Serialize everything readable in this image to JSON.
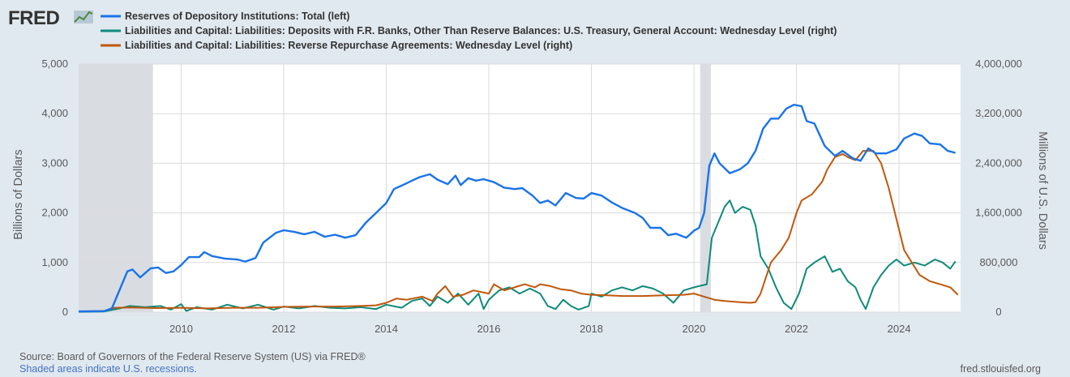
{
  "logo": {
    "text": "FRED"
  },
  "footer": {
    "source": "Source: Board of Governors of the Federal Reserve System (US) via FRED®",
    "recession_note": "Shaded areas indicate U.S. recessions.",
    "site": "fred.stlouisfed.org"
  },
  "colors": {
    "reserves": "#1a73e8",
    "tga": "#0e8a7a",
    "rrp": "#c0570c",
    "recession": "#d9dde2",
    "background": "#e1e9f0",
    "plot": "#ffffff",
    "grid": "#dadada"
  },
  "chart_data": {
    "type": "line",
    "xlabel": "",
    "ylabel_left": "Billions of Dollars",
    "ylabel_right": "Millions of U.S. Dollars",
    "x_ticks": [
      "2010",
      "2012",
      "2014",
      "2016",
      "2018",
      "2020",
      "2022",
      "2024"
    ],
    "xlim": [
      2008.0,
      2025.2
    ],
    "ylim_left": [
      0,
      5000
    ],
    "ylim_right": [
      0,
      4000000
    ],
    "y_ticks_left": [
      "0",
      "1,000",
      "2,000",
      "3,000",
      "4,000",
      "5,000"
    ],
    "y_ticks_right": [
      "0",
      "800,000",
      "1,600,000",
      "2,400,000",
      "3,200,000",
      "4,000,000"
    ],
    "grid": true,
    "legend_position": "top",
    "recessions": [
      [
        2008.0,
        2009.45
      ],
      [
        2020.12,
        2020.33
      ]
    ],
    "series": [
      {
        "name": "Reserves of Depository Institutions: Total (left)",
        "axis": "left",
        "points": [
          [
            2008.0,
            15
          ],
          [
            2008.5,
            20
          ],
          [
            2008.65,
            80
          ],
          [
            2008.8,
            450
          ],
          [
            2008.95,
            820
          ],
          [
            2009.05,
            860
          ],
          [
            2009.2,
            700
          ],
          [
            2009.4,
            880
          ],
          [
            2009.55,
            900
          ],
          [
            2009.7,
            790
          ],
          [
            2009.85,
            820
          ],
          [
            2010.0,
            950
          ],
          [
            2010.15,
            1110
          ],
          [
            2010.35,
            1110
          ],
          [
            2010.45,
            1210
          ],
          [
            2010.6,
            1130
          ],
          [
            2010.85,
            1080
          ],
          [
            2011.1,
            1060
          ],
          [
            2011.25,
            1020
          ],
          [
            2011.45,
            1090
          ],
          [
            2011.6,
            1400
          ],
          [
            2011.85,
            1600
          ],
          [
            2012.0,
            1650
          ],
          [
            2012.2,
            1620
          ],
          [
            2012.4,
            1570
          ],
          [
            2012.6,
            1620
          ],
          [
            2012.8,
            1520
          ],
          [
            2013.0,
            1560
          ],
          [
            2013.2,
            1500
          ],
          [
            2013.4,
            1550
          ],
          [
            2013.6,
            1800
          ],
          [
            2013.8,
            2000
          ],
          [
            2014.0,
            2200
          ],
          [
            2014.15,
            2480
          ],
          [
            2014.3,
            2550
          ],
          [
            2014.5,
            2650
          ],
          [
            2014.65,
            2720
          ],
          [
            2014.85,
            2780
          ],
          [
            2015.0,
            2670
          ],
          [
            2015.2,
            2580
          ],
          [
            2015.35,
            2750
          ],
          [
            2015.45,
            2560
          ],
          [
            2015.6,
            2700
          ],
          [
            2015.75,
            2650
          ],
          [
            2015.9,
            2680
          ],
          [
            2016.1,
            2620
          ],
          [
            2016.3,
            2510
          ],
          [
            2016.5,
            2480
          ],
          [
            2016.65,
            2500
          ],
          [
            2016.85,
            2350
          ],
          [
            2017.0,
            2200
          ],
          [
            2017.15,
            2250
          ],
          [
            2017.3,
            2150
          ],
          [
            2017.5,
            2400
          ],
          [
            2017.7,
            2300
          ],
          [
            2017.85,
            2290
          ],
          [
            2018.0,
            2400
          ],
          [
            2018.2,
            2350
          ],
          [
            2018.4,
            2210
          ],
          [
            2018.6,
            2100
          ],
          [
            2018.85,
            2000
          ],
          [
            2019.0,
            1900
          ],
          [
            2019.15,
            1700
          ],
          [
            2019.35,
            1700
          ],
          [
            2019.5,
            1550
          ],
          [
            2019.65,
            1580
          ],
          [
            2019.85,
            1500
          ],
          [
            2020.0,
            1640
          ],
          [
            2020.1,
            1700
          ],
          [
            2020.2,
            2000
          ],
          [
            2020.3,
            2950
          ],
          [
            2020.4,
            3200
          ],
          [
            2020.5,
            3000
          ],
          [
            2020.7,
            2800
          ],
          [
            2020.9,
            2880
          ],
          [
            2021.05,
            3000
          ],
          [
            2021.2,
            3250
          ],
          [
            2021.35,
            3700
          ],
          [
            2021.5,
            3900
          ],
          [
            2021.65,
            3900
          ],
          [
            2021.8,
            4100
          ],
          [
            2021.95,
            4180
          ],
          [
            2022.1,
            4150
          ],
          [
            2022.2,
            3850
          ],
          [
            2022.35,
            3800
          ],
          [
            2022.55,
            3350
          ],
          [
            2022.75,
            3150
          ],
          [
            2022.9,
            3250
          ],
          [
            2023.1,
            3100
          ],
          [
            2023.25,
            3050
          ],
          [
            2023.4,
            3300
          ],
          [
            2023.55,
            3200
          ],
          [
            2023.75,
            3200
          ],
          [
            2023.95,
            3280
          ],
          [
            2024.1,
            3500
          ],
          [
            2024.3,
            3600
          ],
          [
            2024.45,
            3550
          ],
          [
            2024.6,
            3400
          ],
          [
            2024.8,
            3380
          ],
          [
            2024.95,
            3250
          ],
          [
            2025.1,
            3210
          ]
        ]
      },
      {
        "name": "Liabilities and Capital: Liabilities: Deposits with F.R. Banks, Other Than Reserve Balances: U.S. Treasury, General Account: Wednesday Level (right)",
        "axis": "right",
        "points": [
          [
            2008.0,
            5000
          ],
          [
            2008.5,
            10000
          ],
          [
            2008.8,
            60000
          ],
          [
            2009.0,
            100000
          ],
          [
            2009.3,
            80000
          ],
          [
            2009.6,
            100000
          ],
          [
            2009.8,
            40000
          ],
          [
            2010.0,
            130000
          ],
          [
            2010.1,
            20000
          ],
          [
            2010.3,
            80000
          ],
          [
            2010.6,
            40000
          ],
          [
            2010.9,
            120000
          ],
          [
            2011.2,
            60000
          ],
          [
            2011.5,
            120000
          ],
          [
            2011.8,
            40000
          ],
          [
            2012.0,
            90000
          ],
          [
            2012.3,
            60000
          ],
          [
            2012.6,
            100000
          ],
          [
            2012.9,
            70000
          ],
          [
            2013.2,
            60000
          ],
          [
            2013.5,
            80000
          ],
          [
            2013.8,
            50000
          ],
          [
            2014.0,
            120000
          ],
          [
            2014.3,
            70000
          ],
          [
            2014.5,
            180000
          ],
          [
            2014.7,
            220000
          ],
          [
            2014.85,
            100000
          ],
          [
            2015.0,
            250000
          ],
          [
            2015.2,
            150000
          ],
          [
            2015.4,
            300000
          ],
          [
            2015.6,
            120000
          ],
          [
            2015.8,
            300000
          ],
          [
            2015.9,
            50000
          ],
          [
            2016.0,
            200000
          ],
          [
            2016.2,
            350000
          ],
          [
            2016.4,
            400000
          ],
          [
            2016.6,
            300000
          ],
          [
            2016.8,
            380000
          ],
          [
            2017.0,
            300000
          ],
          [
            2017.15,
            100000
          ],
          [
            2017.3,
            50000
          ],
          [
            2017.45,
            200000
          ],
          [
            2017.6,
            100000
          ],
          [
            2017.75,
            40000
          ],
          [
            2017.95,
            100000
          ],
          [
            2018.0,
            300000
          ],
          [
            2018.2,
            250000
          ],
          [
            2018.4,
            350000
          ],
          [
            2018.6,
            400000
          ],
          [
            2018.8,
            350000
          ],
          [
            2019.0,
            420000
          ],
          [
            2019.2,
            380000
          ],
          [
            2019.4,
            300000
          ],
          [
            2019.6,
            150000
          ],
          [
            2019.8,
            350000
          ],
          [
            2020.0,
            400000
          ],
          [
            2020.15,
            430000
          ],
          [
            2020.25,
            450000
          ],
          [
            2020.35,
            1200000
          ],
          [
            2020.5,
            1500000
          ],
          [
            2020.6,
            1700000
          ],
          [
            2020.7,
            1800000
          ],
          [
            2020.8,
            1600000
          ],
          [
            2020.95,
            1700000
          ],
          [
            2021.1,
            1650000
          ],
          [
            2021.2,
            1400000
          ],
          [
            2021.3,
            900000
          ],
          [
            2021.45,
            700000
          ],
          [
            2021.6,
            400000
          ],
          [
            2021.75,
            150000
          ],
          [
            2021.9,
            50000
          ],
          [
            2022.05,
            300000
          ],
          [
            2022.2,
            700000
          ],
          [
            2022.35,
            800000
          ],
          [
            2022.55,
            900000
          ],
          [
            2022.7,
            650000
          ],
          [
            2022.85,
            700000
          ],
          [
            2023.0,
            500000
          ],
          [
            2023.15,
            400000
          ],
          [
            2023.25,
            200000
          ],
          [
            2023.35,
            50000
          ],
          [
            2023.5,
            400000
          ],
          [
            2023.65,
            600000
          ],
          [
            2023.8,
            750000
          ],
          [
            2023.95,
            850000
          ],
          [
            2024.1,
            750000
          ],
          [
            2024.3,
            800000
          ],
          [
            2024.5,
            750000
          ],
          [
            2024.7,
            850000
          ],
          [
            2024.85,
            800000
          ],
          [
            2025.0,
            700000
          ],
          [
            2025.1,
            820000
          ]
        ]
      },
      {
        "name": "Liabilities and Capital: Liabilities: Reverse Repurchase Agreements: Wednesday Level (right)",
        "axis": "right",
        "points": [
          [
            2008.0,
            10000
          ],
          [
            2008.5,
            20000
          ],
          [
            2008.7,
            70000
          ],
          [
            2009.0,
            75000
          ],
          [
            2009.5,
            65000
          ],
          [
            2010.0,
            70000
          ],
          [
            2010.5,
            60000
          ],
          [
            2011.0,
            70000
          ],
          [
            2011.5,
            70000
          ],
          [
            2012.0,
            85000
          ],
          [
            2012.5,
            90000
          ],
          [
            2013.0,
            90000
          ],
          [
            2013.5,
            100000
          ],
          [
            2013.8,
            110000
          ],
          [
            2014.0,
            150000
          ],
          [
            2014.2,
            220000
          ],
          [
            2014.4,
            200000
          ],
          [
            2014.7,
            250000
          ],
          [
            2014.9,
            180000
          ],
          [
            2015.0,
            300000
          ],
          [
            2015.15,
            420000
          ],
          [
            2015.3,
            250000
          ],
          [
            2015.5,
            280000
          ],
          [
            2015.7,
            350000
          ],
          [
            2016.0,
            300000
          ],
          [
            2016.1,
            450000
          ],
          [
            2016.3,
            350000
          ],
          [
            2016.5,
            400000
          ],
          [
            2016.7,
            450000
          ],
          [
            2016.9,
            400000
          ],
          [
            2017.0,
            450000
          ],
          [
            2017.2,
            420000
          ],
          [
            2017.4,
            370000
          ],
          [
            2017.6,
            350000
          ],
          [
            2017.8,
            300000
          ],
          [
            2018.0,
            280000
          ],
          [
            2018.3,
            270000
          ],
          [
            2018.6,
            260000
          ],
          [
            2019.0,
            260000
          ],
          [
            2019.4,
            270000
          ],
          [
            2019.8,
            280000
          ],
          [
            2020.0,
            300000
          ],
          [
            2020.2,
            250000
          ],
          [
            2020.4,
            200000
          ],
          [
            2020.6,
            180000
          ],
          [
            2020.9,
            160000
          ],
          [
            2021.1,
            150000
          ],
          [
            2021.2,
            160000
          ],
          [
            2021.3,
            300000
          ],
          [
            2021.4,
            550000
          ],
          [
            2021.5,
            800000
          ],
          [
            2021.7,
            1000000
          ],
          [
            2021.85,
            1200000
          ],
          [
            2022.0,
            1600000
          ],
          [
            2022.1,
            1800000
          ],
          [
            2022.3,
            1900000
          ],
          [
            2022.5,
            2100000
          ],
          [
            2022.6,
            2300000
          ],
          [
            2022.75,
            2500000
          ],
          [
            2022.9,
            2550000
          ],
          [
            2023.0,
            2500000
          ],
          [
            2023.15,
            2450000
          ],
          [
            2023.3,
            2600000
          ],
          [
            2023.5,
            2600000
          ],
          [
            2023.65,
            2400000
          ],
          [
            2023.8,
            2000000
          ],
          [
            2023.95,
            1500000
          ],
          [
            2024.1,
            1000000
          ],
          [
            2024.25,
            800000
          ],
          [
            2024.4,
            600000
          ],
          [
            2024.6,
            500000
          ],
          [
            2024.8,
            450000
          ],
          [
            2025.0,
            400000
          ],
          [
            2025.15,
            280000
          ]
        ]
      }
    ]
  }
}
